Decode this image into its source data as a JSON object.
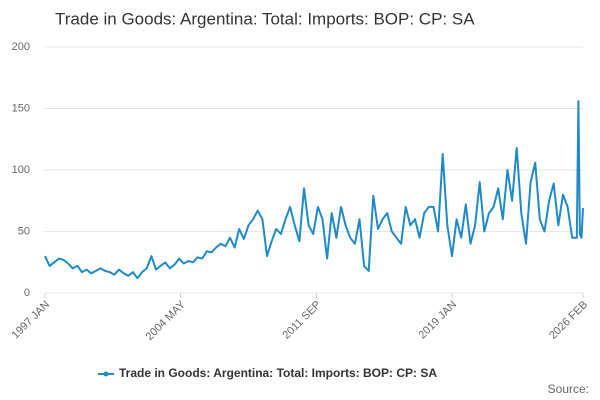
{
  "chart_data": {
    "type": "line",
    "title": "Trade in Goods: Argentina: Total: Imports: BOP: CP: SA",
    "source": "Source:",
    "x": [
      "1997 JAN",
      "1997 APR",
      "1997 JUL",
      "1997 OCT",
      "1998 JAN",
      "1998 APR",
      "1998 JUL",
      "1998 OCT",
      "1999 JAN",
      "1999 APR",
      "1999 JUL",
      "1999 OCT",
      "2000 JAN",
      "2000 APR",
      "2000 JUL",
      "2000 OCT",
      "2001 JAN",
      "2001 APR",
      "2001 JUL",
      "2001 OCT",
      "2002 JAN",
      "2002 APR",
      "2002 JUL",
      "2002 OCT",
      "2003 JAN",
      "2003 APR",
      "2003 JUL",
      "2003 OCT",
      "2004 JAN",
      "2004 APR",
      "2004 JUL",
      "2004 OCT",
      "2005 JAN",
      "2005 APR",
      "2005 JUL",
      "2005 OCT",
      "2006 JAN",
      "2006 APR",
      "2006 JUL",
      "2006 OCT",
      "2007 JAN",
      "2007 APR",
      "2007 JUL",
      "2007 OCT",
      "2008 JAN",
      "2008 APR",
      "2008 JUL",
      "2008 OCT",
      "2009 JAN",
      "2009 APR",
      "2009 JUL",
      "2009 OCT",
      "2010 JAN",
      "2010 APR",
      "2010 JUL",
      "2010 OCT",
      "2011 JAN",
      "2011 APR",
      "2011 JUL",
      "2011 OCT",
      "2012 JAN",
      "2012 APR",
      "2012 JUL",
      "2012 OCT",
      "2013 JAN",
      "2013 APR",
      "2013 JUL",
      "2013 OCT",
      "2014 JAN",
      "2014 APR",
      "2014 JUL",
      "2014 OCT",
      "2015 JAN",
      "2015 APR",
      "2015 JUL",
      "2015 OCT",
      "2016 JAN",
      "2016 APR",
      "2016 JUL",
      "2016 OCT",
      "2017 JAN",
      "2017 APR",
      "2017 JUL",
      "2017 OCT",
      "2018 JAN",
      "2018 APR",
      "2018 JUL",
      "2018 OCT",
      "2019 JAN",
      "2019 APR",
      "2019 JUL",
      "2019 OCT",
      "2020 JAN",
      "2020 APR",
      "2020 JUL",
      "2020 OCT",
      "2021 JAN",
      "2021 APR",
      "2021 JUL",
      "2021 OCT",
      "2022 JAN",
      "2022 APR",
      "2022 JUL",
      "2022 OCT",
      "2023 JAN",
      "2023 APR",
      "2023 JUL",
      "2023 OCT",
      "2024 JAN",
      "2024 APR",
      "2024 JUL",
      "2024 OCT",
      "2025 JAN",
      "2025 APR",
      "2025 JUL",
      "2025 OCT",
      "2025 NOV",
      "2025 DEC",
      "2026 JAN",
      "2026 FEB"
    ],
    "series": [
      {
        "name": "Trade in Goods: Argentina: Total: Imports: BOP: CP: SA",
        "color": "#1f8ac6",
        "values": [
          30,
          22,
          25,
          28,
          27,
          24,
          20,
          22,
          17,
          19,
          16,
          18,
          20,
          18,
          17,
          15,
          19,
          16,
          14,
          17,
          12,
          17,
          20,
          30,
          19,
          22,
          25,
          20,
          23,
          28,
          24,
          26,
          25,
          29,
          28,
          34,
          33,
          37,
          40,
          38,
          45,
          37,
          52,
          44,
          55,
          60,
          67,
          60,
          30,
          42,
          52,
          48,
          60,
          70,
          55,
          42,
          85,
          55,
          48,
          70,
          60,
          28,
          65,
          45,
          70,
          55,
          45,
          40,
          60,
          22,
          18,
          79,
          52,
          60,
          65,
          50,
          45,
          40,
          70,
          55,
          60,
          45,
          65,
          70,
          70,
          50,
          113,
          55,
          30,
          60,
          45,
          72,
          40,
          55,
          90,
          50,
          65,
          70,
          85,
          60,
          100,
          75,
          118,
          65,
          40,
          90,
          106,
          60,
          50,
          75,
          89,
          55,
          80,
          70,
          45,
          45,
          156,
          48,
          45,
          69
        ]
      }
    ],
    "ylim": [
      0,
      200
    ],
    "yticks": [
      0,
      50,
      100,
      150,
      200
    ],
    "xlim": [
      "1997 JAN",
      "2026 FEB"
    ],
    "xticks": [
      "1997 JAN",
      "2004 MAY",
      "2011 SEP",
      "2019 JAN",
      "2026 FEB"
    ],
    "grid": true,
    "legend": "bottom"
  }
}
